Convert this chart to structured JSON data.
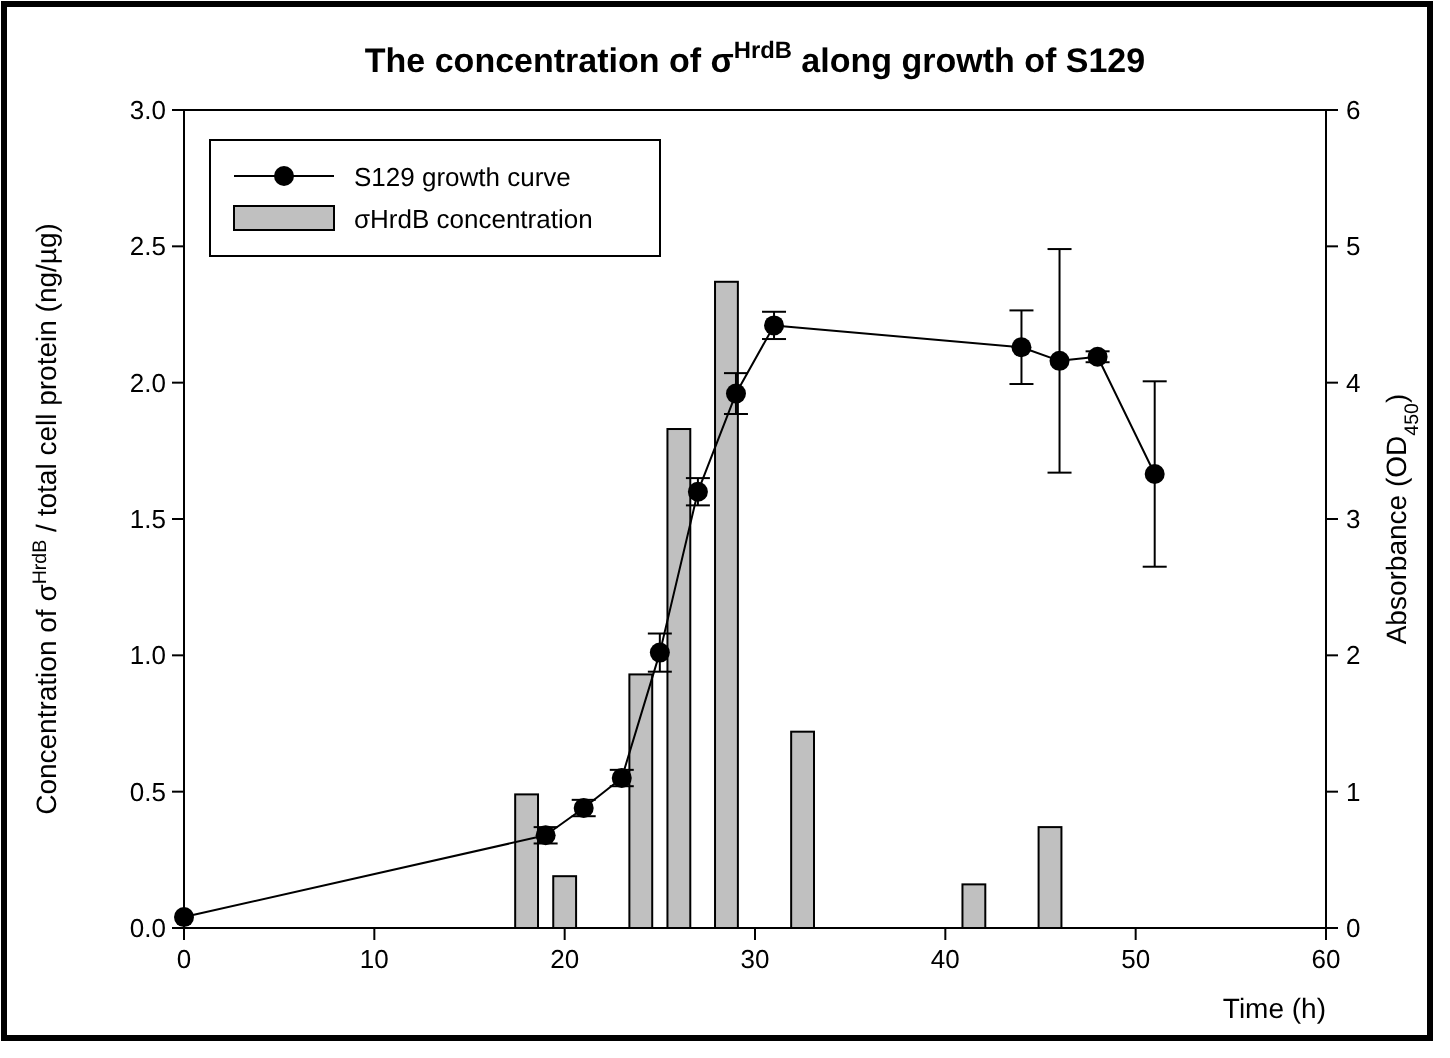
{
  "chart_data": {
    "type": "bar",
    "title": "The concentration of σ$^{HrdB}$ along growth of S129",
    "xlabel": "Time (h)",
    "ylabel": "Concentration of σ$^{HrdB}$ / total cell protein (ng/µg)",
    "y2label": "Absorbance (OD$_{450}$)",
    "xlim": [
      0,
      60
    ],
    "xticks": [
      0,
      10,
      20,
      30,
      40,
      50,
      60
    ],
    "ylim": [
      0,
      3
    ],
    "yticks": [
      {
        "value": 0,
        "label": "0.0"
      },
      {
        "value": 0.5,
        "label": "0.5"
      },
      {
        "value": 1,
        "label": "1.0"
      },
      {
        "value": 1.5,
        "label": "1.5"
      },
      {
        "value": 2,
        "label": "2.0"
      },
      {
        "value": 2.5,
        "label": "2.5"
      },
      {
        "value": 3,
        "label": "3.0"
      }
    ],
    "y2lim": [
      0,
      6
    ],
    "y2ticks": [
      0,
      1,
      2,
      3,
      4,
      5,
      6
    ],
    "legend": "top left",
    "grid": false,
    "series": [
      {
        "type": "line",
        "name": "S129 growth curve",
        "color": "#000000",
        "axis": "y2",
        "marker": "circle",
        "x": [
          0,
          19,
          21,
          23,
          25,
          27,
          29,
          31,
          44,
          46,
          48,
          51
        ],
        "values": [
          0.08,
          0.68,
          0.88,
          1.1,
          2.02,
          3.2,
          3.92,
          4.42,
          4.26,
          4.16,
          4.19,
          3.33
        ],
        "errors": [
          null,
          0.06,
          0.06,
          0.06,
          0.14,
          0.1,
          0.15,
          0.1,
          0.27,
          0.82,
          0.04,
          0.68
        ]
      },
      {
        "name": "σHrdB concentration",
        "color": "#c0c0c0",
        "x": [
          18,
          20,
          24,
          26,
          28.5,
          32.5,
          41.5,
          45.5
        ],
        "values": [
          0.49,
          0.19,
          0.93,
          1.83,
          2.37,
          0.72,
          0.16,
          0.37
        ]
      }
    ]
  }
}
